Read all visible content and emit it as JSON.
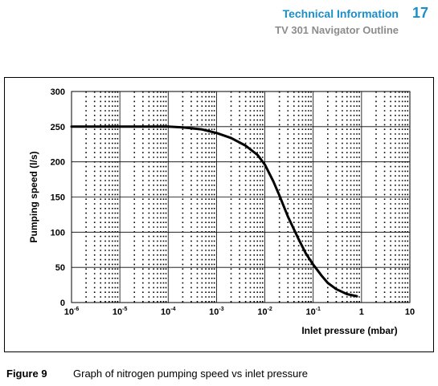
{
  "header": {
    "section_title": "Technical Information",
    "page_number": "17",
    "subtitle": "TV 301 Navigator Outline"
  },
  "caption": {
    "figure_label": "Figure 9",
    "text": "Graph of nitrogen pumping speed vs inlet pressure"
  },
  "chart_data": {
    "type": "line",
    "title": "",
    "xlabel": "Inlet pressure (mbar)",
    "ylabel": "Pumping speed (l/s)",
    "x_scale": "log",
    "xlim": [
      1e-06,
      10
    ],
    "ylim": [
      0,
      300
    ],
    "x_ticks": [
      {
        "base": "10",
        "exp": "-6",
        "value": 1e-06
      },
      {
        "base": "10",
        "exp": "-5",
        "value": 1e-05
      },
      {
        "base": "10",
        "exp": "-4",
        "value": 0.0001
      },
      {
        "base": "10",
        "exp": "-3",
        "value": 0.001
      },
      {
        "base": "10",
        "exp": "-2",
        "value": 0.01
      },
      {
        "base": "10",
        "exp": "-1",
        "value": 0.1
      },
      {
        "base": "1",
        "exp": "",
        "value": 1
      },
      {
        "base": "10",
        "exp": "",
        "value": 10
      }
    ],
    "y_ticks": [
      "0",
      "50",
      "100",
      "150",
      "200",
      "250",
      "300"
    ],
    "grid": true,
    "series": [
      {
        "color": "#000000",
        "x": [
          1e-06,
          1e-05,
          0.0001,
          0.0002,
          0.0005,
          0.001,
          0.002,
          0.004,
          0.007,
          0.01,
          0.015,
          0.02,
          0.03,
          0.05,
          0.07,
          0.1,
          0.15,
          0.2,
          0.3,
          0.5,
          0.8
        ],
        "y": [
          250,
          250,
          250,
          249,
          246,
          241,
          234,
          223,
          210,
          196,
          172,
          152,
          122,
          90,
          70,
          54,
          38,
          28,
          19,
          12,
          9
        ]
      }
    ]
  }
}
